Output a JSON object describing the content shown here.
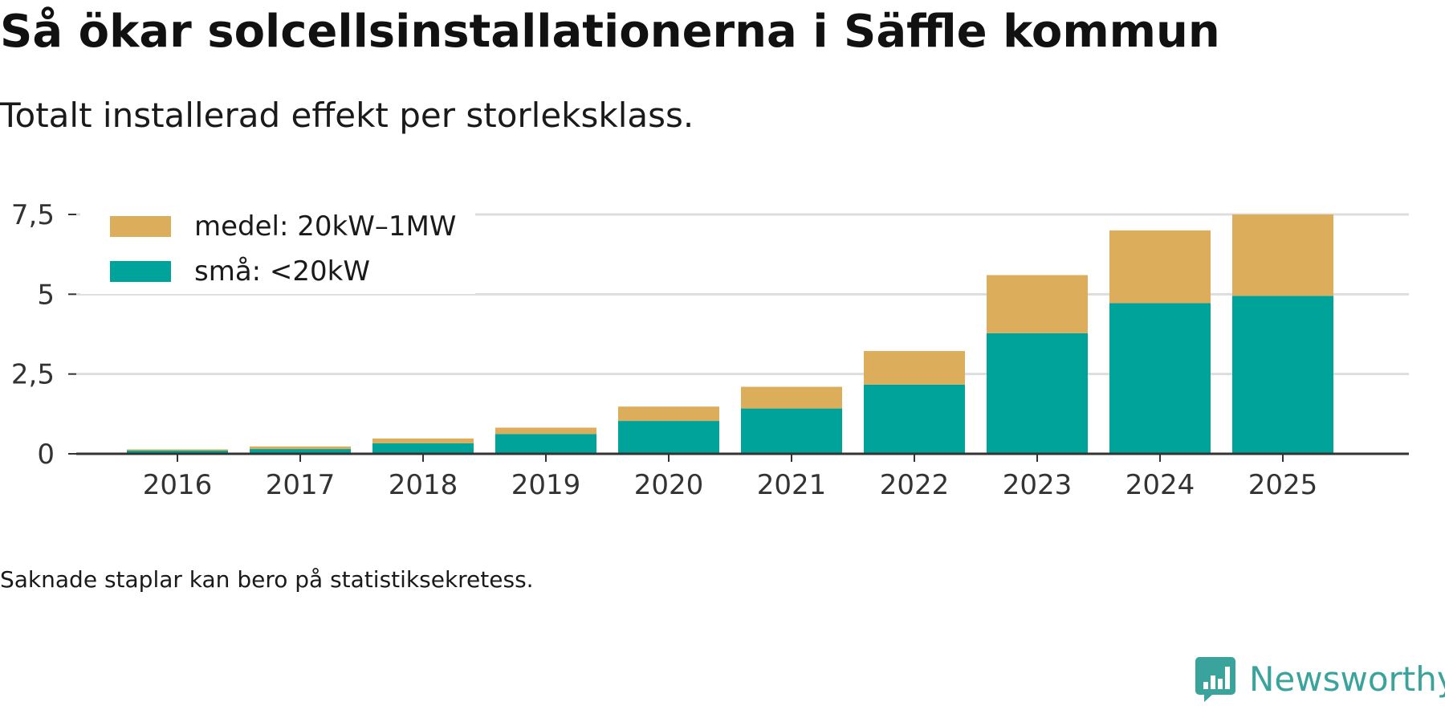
{
  "chart_data": {
    "type": "bar",
    "stacked": true,
    "title": "Så ökar solcellsinstallationerna i Säffle kommun",
    "subtitle": "Totalt installerad effekt per storleksklass.",
    "categories": [
      "2016",
      "2017",
      "2018",
      "2019",
      "2020",
      "2021",
      "2022",
      "2023",
      "2024",
      "2025"
    ],
    "series": [
      {
        "name": "små: <20kW",
        "color": "#00a39a",
        "values": [
          0.1,
          0.15,
          0.33,
          0.62,
          1.03,
          1.42,
          2.17,
          3.78,
          4.72,
          4.95
        ]
      },
      {
        "name": "medel: 20kW–1MW",
        "color": "#dcad5b",
        "values": [
          0.04,
          0.08,
          0.15,
          0.2,
          0.45,
          0.68,
          1.05,
          1.82,
          2.28,
          2.55
        ]
      }
    ],
    "yticks": [
      {
        "value": 0,
        "label": "0"
      },
      {
        "value": 2.5,
        "label": "2,5"
      },
      {
        "value": 5,
        "label": "5"
      },
      {
        "value": 7.5,
        "label": "7,5"
      }
    ],
    "ylim": [
      0,
      7.5
    ],
    "xlabel": "",
    "ylabel": "",
    "grid": true,
    "legend_position": "top-left",
    "legend": [
      {
        "label": "medel: 20kW–1MW",
        "color": "#dcad5b"
      },
      {
        "label": "små: <20kW",
        "color": "#00a39a"
      }
    ]
  },
  "footnote": "Saknade staplar kan bero på statistiksekretess.",
  "brand": {
    "name": "Newsworthy",
    "logo_icon": "bar-chart-speech-bubble-icon",
    "color": "#3aa39b"
  }
}
